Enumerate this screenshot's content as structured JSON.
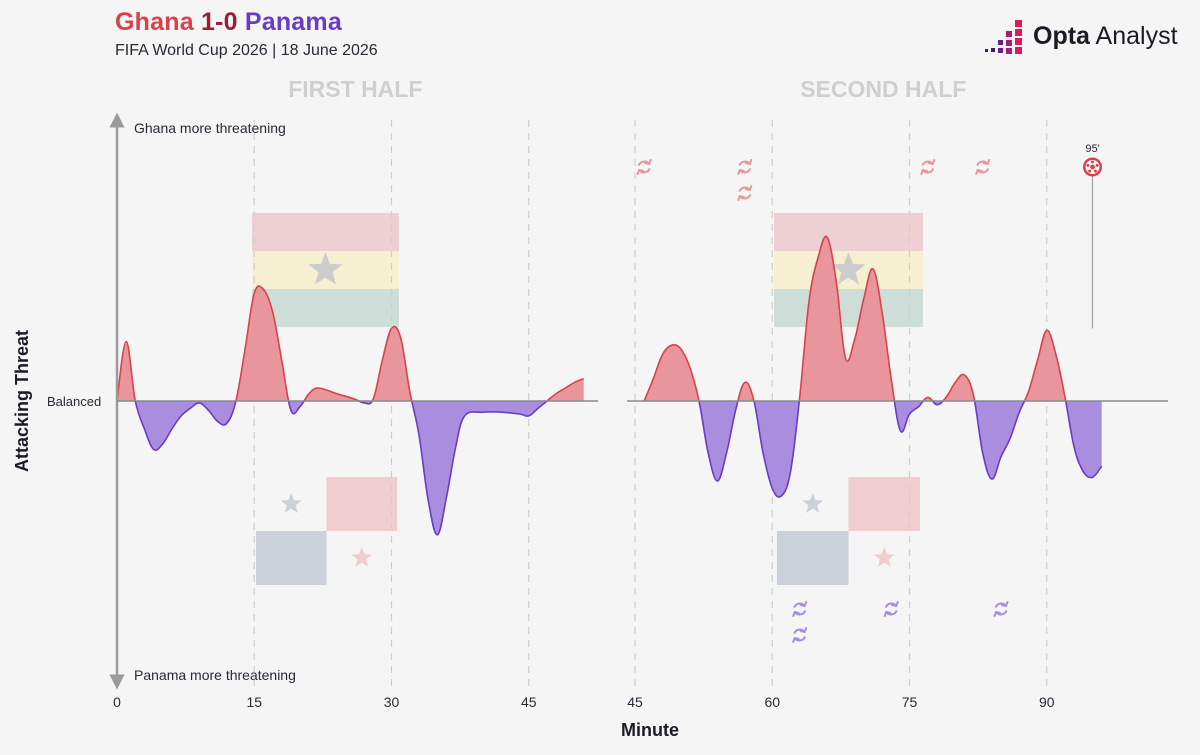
{
  "header": {
    "home_team": "Ghana",
    "score": "1-0",
    "away_team": "Panama",
    "subtitle": "FIFA World Cup 2026 | 18 June 2026",
    "brand_bold": "Opta",
    "brand_light": "Analyst"
  },
  "colors": {
    "home": "#d9424b",
    "away": "#6a3bc4",
    "home_fill": "#e8959b",
    "away_fill": "#a98ee0",
    "baseline": "#8a8a8a",
    "panel_title": "#cfcfcf",
    "brand_accent": "#e0195e"
  },
  "chart_data": {
    "type": "area",
    "title": "",
    "xlabel": "Minute",
    "ylabel": "Attacking Threat",
    "y_top_label": "Ghana more threatening",
    "y_mid_label": "Balanced",
    "y_bottom_label": "Panama more threatening",
    "grid": "dashed vertical lines every 15 minutes",
    "series": [
      {
        "name": "Ghana",
        "side": "positive"
      },
      {
        "name": "Panama",
        "side": "negative"
      }
    ],
    "panels": [
      {
        "title": "FIRST HALF",
        "xlim": [
          0,
          51
        ],
        "ticks": [
          0,
          15,
          30,
          45
        ],
        "tick_labels": [
          "0",
          "15",
          "30",
          "45"
        ],
        "gridlines": [
          15,
          30,
          45
        ],
        "flags_shown": [
          "Ghana",
          "Panama"
        ],
        "points": [
          [
            0,
            0
          ],
          [
            1,
            0.32
          ],
          [
            2,
            0
          ],
          [
            3,
            -0.15
          ],
          [
            4,
            -0.26
          ],
          [
            5,
            -0.23
          ],
          [
            6,
            -0.15
          ],
          [
            7,
            -0.08
          ],
          [
            8,
            -0.04
          ],
          [
            9,
            -0.01
          ],
          [
            10,
            -0.05
          ],
          [
            11,
            -0.11
          ],
          [
            12,
            -0.12
          ],
          [
            13,
            0
          ],
          [
            14,
            0.28
          ],
          [
            15,
            0.58
          ],
          [
            16,
            0.6
          ],
          [
            17,
            0.48
          ],
          [
            18,
            0.22
          ],
          [
            19,
            -0.05
          ],
          [
            20,
            -0.03
          ],
          [
            21,
            0.04
          ],
          [
            22,
            0.07
          ],
          [
            24,
            0.04
          ],
          [
            26,
            0.01
          ],
          [
            27,
            -0.01
          ],
          [
            28,
            0.01
          ],
          [
            29,
            0.22
          ],
          [
            30,
            0.39
          ],
          [
            31,
            0.34
          ],
          [
            32,
            0.05
          ],
          [
            33,
            -0.18
          ],
          [
            34,
            -0.53
          ],
          [
            35,
            -0.72
          ],
          [
            36,
            -0.52
          ],
          [
            37,
            -0.25
          ],
          [
            38,
            -0.08
          ],
          [
            40,
            -0.06
          ],
          [
            42,
            -0.06
          ],
          [
            44,
            -0.07
          ],
          [
            45,
            -0.08
          ],
          [
            46,
            -0.04
          ],
          [
            47,
            0
          ],
          [
            48,
            0.04
          ],
          [
            49,
            0.07
          ],
          [
            50,
            0.1
          ],
          [
            51,
            0.12
          ]
        ],
        "substitutions": [
          {
            "team": "Ghana",
            "minute": null
          },
          {
            "team": "Panama",
            "minute": null
          }
        ],
        "goals": []
      },
      {
        "title": "SECOND HALF",
        "xlim": [
          44,
          97
        ],
        "ticks": [
          45,
          60,
          75,
          90
        ],
        "tick_labels": [
          "45",
          "60",
          "75",
          "90"
        ],
        "gridlines": [
          45,
          60,
          75,
          90
        ],
        "flags_shown": [
          "Ghana",
          "Panama"
        ],
        "points": [
          [
            46,
            0
          ],
          [
            47,
            0.12
          ],
          [
            48,
            0.25
          ],
          [
            49,
            0.3
          ],
          [
            50,
            0.28
          ],
          [
            51,
            0.18
          ],
          [
            52,
            0
          ],
          [
            53,
            -0.28
          ],
          [
            54,
            -0.43
          ],
          [
            55,
            -0.28
          ],
          [
            56,
            -0.05
          ],
          [
            57,
            0.1
          ],
          [
            58,
            0
          ],
          [
            59,
            -0.28
          ],
          [
            60,
            -0.47
          ],
          [
            61,
            -0.51
          ],
          [
            62,
            -0.38
          ],
          [
            63,
            0.02
          ],
          [
            64,
            0.53
          ],
          [
            65,
            0.77
          ],
          [
            66,
            0.88
          ],
          [
            67,
            0.64
          ],
          [
            68,
            0.23
          ],
          [
            69,
            0.33
          ],
          [
            70,
            0.55
          ],
          [
            71,
            0.71
          ],
          [
            72,
            0.48
          ],
          [
            73,
            0.12
          ],
          [
            74,
            -0.16
          ],
          [
            75,
            -0.07
          ],
          [
            76,
            -0.03
          ],
          [
            77,
            0.02
          ],
          [
            78,
            -0.02
          ],
          [
            79,
            0.02
          ],
          [
            80,
            0.1
          ],
          [
            81,
            0.14
          ],
          [
            82,
            0.03
          ],
          [
            83,
            -0.28
          ],
          [
            84,
            -0.42
          ],
          [
            85,
            -0.3
          ],
          [
            86,
            -0.2
          ],
          [
            87,
            -0.06
          ],
          [
            88,
            0.05
          ],
          [
            89,
            0.22
          ],
          [
            90,
            0.38
          ],
          [
            91,
            0.25
          ],
          [
            92,
            0.02
          ],
          [
            93,
            -0.25
          ],
          [
            94,
            -0.38
          ],
          [
            95,
            -0.41
          ],
          [
            96,
            -0.35
          ]
        ],
        "substitutions": [
          {
            "team": "Ghana",
            "minute": 46
          },
          {
            "team": "Ghana",
            "minute": 57,
            "stack": 0
          },
          {
            "team": "Ghana",
            "minute": 57,
            "stack": 1
          },
          {
            "team": "Ghana",
            "minute": 77
          },
          {
            "team": "Ghana",
            "minute": 83
          },
          {
            "team": "Panama",
            "minute": 63,
            "stack": 0
          },
          {
            "team": "Panama",
            "minute": 63,
            "stack": 1
          },
          {
            "team": "Panama",
            "minute": 73
          },
          {
            "team": "Panama",
            "minute": 85
          }
        ],
        "goals": [
          {
            "team": "Ghana",
            "minute": 95,
            "label": "95'",
            "y": 0.39
          }
        ]
      }
    ]
  }
}
